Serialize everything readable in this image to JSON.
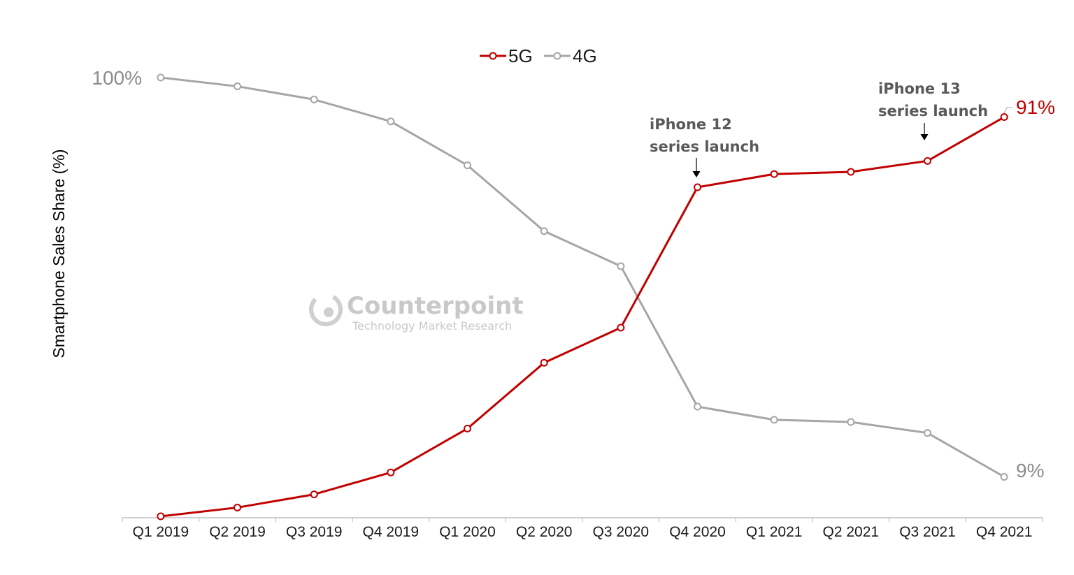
{
  "chart_data": {
    "type": "line",
    "categories": [
      "Q1 2019",
      "Q2 2019",
      "Q3 2019",
      "Q4 2019",
      "Q1 2020",
      "Q2 2020",
      "Q3 2020",
      "Q4 2020",
      "Q1 2021",
      "Q2 2021",
      "Q3 2021",
      "Q4 2021"
    ],
    "series": [
      {
        "name": "5G",
        "color": "#c00000",
        "values": [
          0,
          2,
          5,
          10,
          20,
          35,
          43,
          75,
          78,
          78.5,
          81,
          91
        ]
      },
      {
        "name": "4G",
        "color": "#a6a6a6",
        "values": [
          100,
          98,
          95,
          90,
          80,
          65,
          57,
          25,
          22,
          21.5,
          19,
          9
        ]
      }
    ],
    "title": "",
    "xlabel": "",
    "ylabel": "Smartphone Sales Share (%)",
    "ylim": [
      0,
      100
    ],
    "grid": false,
    "legend_position": "top-center",
    "end_labels": {
      "start_4g": "100%",
      "end_5g": "91%",
      "end_4g": "9%"
    },
    "annotations": [
      {
        "category": "Q4 2020",
        "lines": [
          "iPhone 12",
          "series launch"
        ]
      },
      {
        "category": "Q3 2021",
        "lines": [
          "iPhone 13",
          "series launch"
        ]
      }
    ]
  },
  "watermark": {
    "title": "Counterpoint",
    "subtitle": "Technology Market Research"
  }
}
